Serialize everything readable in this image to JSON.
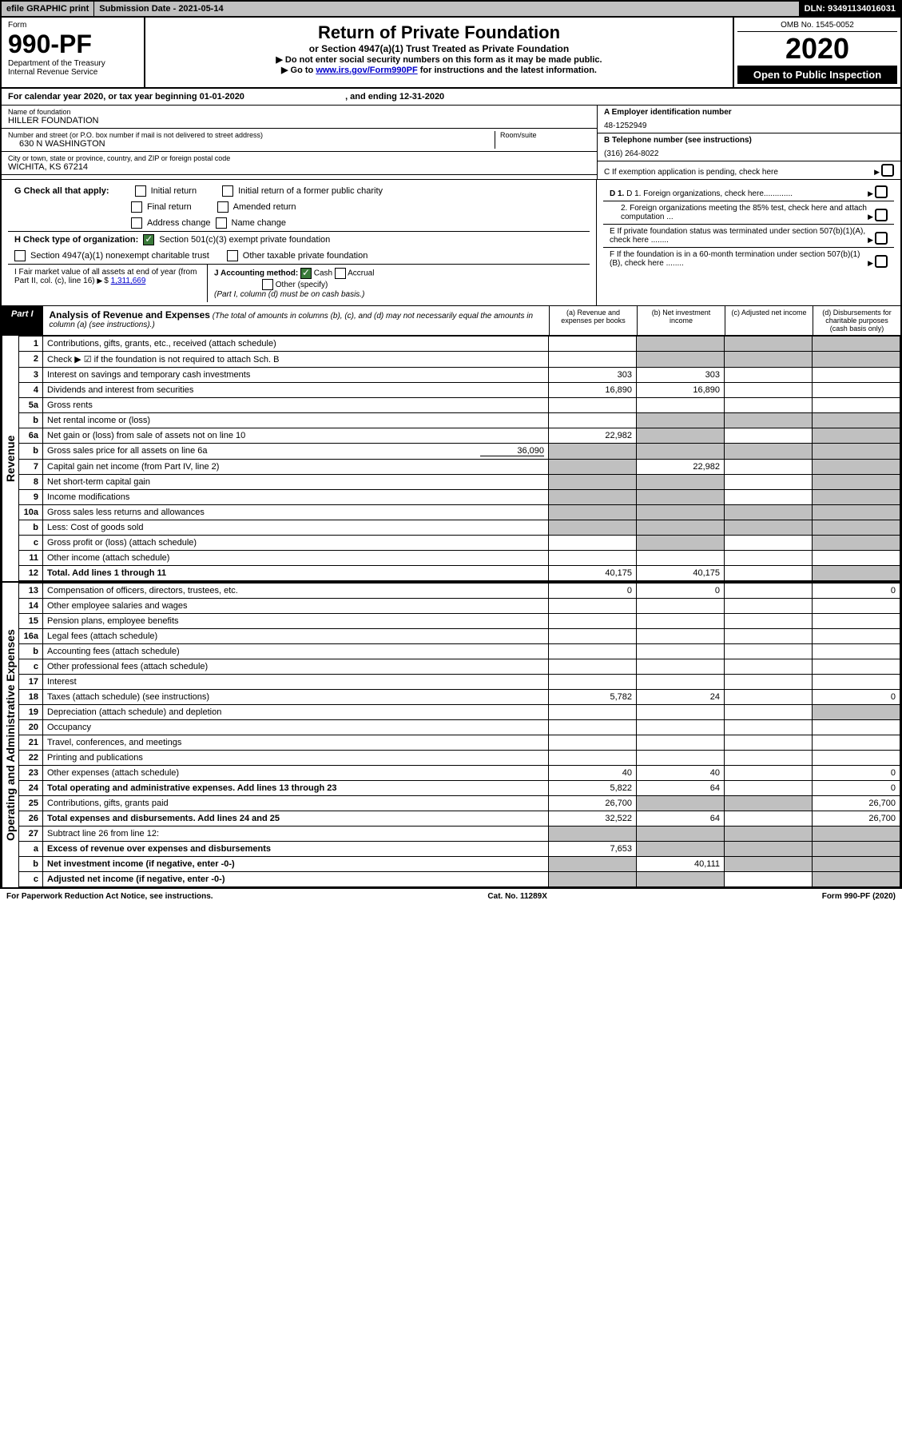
{
  "topbar": {
    "efile": "efile GRAPHIC print",
    "subdate": "Submission Date - 2021-05-14",
    "dln": "DLN: 93491134016031"
  },
  "header": {
    "form": "Form",
    "num": "990-PF",
    "dept": "Department of the Treasury\nInternal Revenue Service",
    "title": "Return of Private Foundation",
    "subtitle": "or Section 4947(a)(1) Trust Treated as Private Foundation",
    "note1": "▶ Do not enter social security numbers on this form as it may be made public.",
    "note2_pre": "▶ Go to ",
    "note2_link": "www.irs.gov/Form990PF",
    "note2_post": " for instructions and the latest information.",
    "omb": "OMB No. 1545-0052",
    "year": "2020",
    "open": "Open to Public Inspection"
  },
  "calyear": {
    "text1": "For calendar year 2020, or tax year beginning ",
    "begin": "01-01-2020",
    "text2": ", and ending ",
    "end": "12-31-2020"
  },
  "entity": {
    "name_lbl": "Name of foundation",
    "name": "HILLER FOUNDATION",
    "addr_lbl": "Number and street (or P.O. box number if mail is not delivered to street address)",
    "addr": "630 N WASHINGTON",
    "room_lbl": "Room/suite",
    "city_lbl": "City or town, state or province, country, and ZIP or foreign postal code",
    "city": "WICHITA, KS  67214",
    "a_lbl": "A Employer identification number",
    "ein": "48-1252949",
    "b_lbl": "B Telephone number (see instructions)",
    "phone": "(316) 264-8022",
    "c_lbl": "C  If exemption application is pending, check here",
    "d1": "D 1. Foreign organizations, check here.............",
    "d2": "2. Foreign organizations meeting the 85% test, check here and attach computation ...",
    "e_lbl": "E  If private foundation status was terminated under section 507(b)(1)(A), check here ........",
    "f_lbl": "F  If the foundation is in a 60-month termination under section 507(b)(1)(B), check here ........"
  },
  "checks": {
    "g_lbl": "G Check all that apply:",
    "g_initial": "Initial return",
    "g_initial_former": "Initial return of a former public charity",
    "g_final": "Final return",
    "g_amended": "Amended return",
    "g_addr": "Address change",
    "g_name": "Name change",
    "h_lbl": "H Check type of organization:",
    "h_501c3": "Section 501(c)(3) exempt private foundation",
    "h_4947": "Section 4947(a)(1) nonexempt charitable trust",
    "h_other": "Other taxable private foundation",
    "i_lbl": "I Fair market value of all assets at end of year (from Part II, col. (c), line 16)",
    "i_val": "1,311,669",
    "j_lbl": "J Accounting method:",
    "j_cash": "Cash",
    "j_accrual": "Accrual",
    "j_other": "Other (specify)",
    "j_note": "(Part I, column (d) must be on cash basis.)"
  },
  "part1": {
    "tab": "Part I",
    "title": "Analysis of Revenue and Expenses",
    "title_note": " (The total of amounts in columns (b), (c), and (d) may not necessarily equal the amounts in column (a) (see instructions).)",
    "col_a": "(a)   Revenue and expenses per books",
    "col_b": "(b)   Net investment income",
    "col_c": "(c)   Adjusted net income",
    "col_d": "(d)   Disbursements for charitable purposes (cash basis only)"
  },
  "sections": {
    "revenue": "Revenue",
    "expenses": "Operating and Administrative Expenses"
  },
  "rows": [
    {
      "n": "1",
      "d": "Contributions, gifts, grants, etc., received (attach schedule)",
      "a": "",
      "b": "",
      "c": "",
      "dd": "",
      "sb": true,
      "sc": true,
      "sd": true
    },
    {
      "n": "2",
      "d": "Check ▶ ☑ if the foundation is not required to attach Sch. B",
      "a": "",
      "b": "",
      "c": "",
      "dd": "",
      "sb": true,
      "sc": true,
      "sd": true,
      "bold_not": true
    },
    {
      "n": "3",
      "d": "Interest on savings and temporary cash investments",
      "a": "303",
      "b": "303",
      "c": "",
      "dd": ""
    },
    {
      "n": "4",
      "d": "Dividends and interest from securities",
      "a": "16,890",
      "b": "16,890",
      "c": "",
      "dd": ""
    },
    {
      "n": "5a",
      "d": "Gross rents",
      "a": "",
      "b": "",
      "c": "",
      "dd": ""
    },
    {
      "n": "b",
      "d": "Net rental income or (loss)",
      "a": "",
      "b": "",
      "c": "",
      "dd": "",
      "sb": true,
      "sc": true,
      "sd": true
    },
    {
      "n": "6a",
      "d": "Net gain or (loss) from sale of assets not on line 10",
      "a": "22,982",
      "b": "",
      "c": "",
      "dd": "",
      "sb": true,
      "sd": true
    },
    {
      "n": "b",
      "d": "Gross sales price for all assets on line 6a",
      "a": "",
      "b": "",
      "c": "",
      "dd": "",
      "inline_val": "36,090",
      "sa": true,
      "sb": true,
      "sc": true,
      "sd": true
    },
    {
      "n": "7",
      "d": "Capital gain net income (from Part IV, line 2)",
      "a": "",
      "b": "22,982",
      "c": "",
      "dd": "",
      "sa": true,
      "sd": true
    },
    {
      "n": "8",
      "d": "Net short-term capital gain",
      "a": "",
      "b": "",
      "c": "",
      "dd": "",
      "sa": true,
      "sb": true,
      "sd": true
    },
    {
      "n": "9",
      "d": "Income modifications",
      "a": "",
      "b": "",
      "c": "",
      "dd": "",
      "sa": true,
      "sb": true,
      "sd": true
    },
    {
      "n": "10a",
      "d": "Gross sales less returns and allowances",
      "a": "",
      "b": "",
      "c": "",
      "dd": "",
      "sa": true,
      "sb": true,
      "sc": true,
      "sd": true
    },
    {
      "n": "b",
      "d": "Less: Cost of goods sold",
      "a": "",
      "b": "",
      "c": "",
      "dd": "",
      "sa": true,
      "sb": true,
      "sc": true,
      "sd": true
    },
    {
      "n": "c",
      "d": "Gross profit or (loss) (attach schedule)",
      "a": "",
      "b": "",
      "c": "",
      "dd": "",
      "sb": true,
      "sd": true
    },
    {
      "n": "11",
      "d": "Other income (attach schedule)",
      "a": "",
      "b": "",
      "c": "",
      "dd": ""
    },
    {
      "n": "12",
      "d": "Total. Add lines 1 through 11",
      "a": "40,175",
      "b": "40,175",
      "c": "",
      "dd": "",
      "bold": true,
      "sd": true
    }
  ],
  "exp_rows": [
    {
      "n": "13",
      "d": "Compensation of officers, directors, trustees, etc.",
      "a": "0",
      "b": "0",
      "c": "",
      "dd": "0"
    },
    {
      "n": "14",
      "d": "Other employee salaries and wages",
      "a": "",
      "b": "",
      "c": "",
      "dd": ""
    },
    {
      "n": "15",
      "d": "Pension plans, employee benefits",
      "a": "",
      "b": "",
      "c": "",
      "dd": ""
    },
    {
      "n": "16a",
      "d": "Legal fees (attach schedule)",
      "a": "",
      "b": "",
      "c": "",
      "dd": ""
    },
    {
      "n": "b",
      "d": "Accounting fees (attach schedule)",
      "a": "",
      "b": "",
      "c": "",
      "dd": ""
    },
    {
      "n": "c",
      "d": "Other professional fees (attach schedule)",
      "a": "",
      "b": "",
      "c": "",
      "dd": ""
    },
    {
      "n": "17",
      "d": "Interest",
      "a": "",
      "b": "",
      "c": "",
      "dd": ""
    },
    {
      "n": "18",
      "d": "Taxes (attach schedule) (see instructions)",
      "a": "5,782",
      "b": "24",
      "c": "",
      "dd": "0"
    },
    {
      "n": "19",
      "d": "Depreciation (attach schedule) and depletion",
      "a": "",
      "b": "",
      "c": "",
      "dd": "",
      "sd": true
    },
    {
      "n": "20",
      "d": "Occupancy",
      "a": "",
      "b": "",
      "c": "",
      "dd": ""
    },
    {
      "n": "21",
      "d": "Travel, conferences, and meetings",
      "a": "",
      "b": "",
      "c": "",
      "dd": ""
    },
    {
      "n": "22",
      "d": "Printing and publications",
      "a": "",
      "b": "",
      "c": "",
      "dd": ""
    },
    {
      "n": "23",
      "d": "Other expenses (attach schedule)",
      "a": "40",
      "b": "40",
      "c": "",
      "dd": "0"
    },
    {
      "n": "24",
      "d": "Total operating and administrative expenses. Add lines 13 through 23",
      "a": "5,822",
      "b": "64",
      "c": "",
      "dd": "0",
      "bold": true
    },
    {
      "n": "25",
      "d": "Contributions, gifts, grants paid",
      "a": "26,700",
      "b": "",
      "c": "",
      "dd": "26,700",
      "sb": true,
      "sc": true
    },
    {
      "n": "26",
      "d": "Total expenses and disbursements. Add lines 24 and 25",
      "a": "32,522",
      "b": "64",
      "c": "",
      "dd": "26,700",
      "bold": true
    },
    {
      "n": "27",
      "d": "Subtract line 26 from line 12:",
      "a": "",
      "b": "",
      "c": "",
      "dd": "",
      "sa": true,
      "sb": true,
      "sc": true,
      "sd": true
    },
    {
      "n": "a",
      "d": "Excess of revenue over expenses and disbursements",
      "a": "7,653",
      "b": "",
      "c": "",
      "dd": "",
      "bold": true,
      "sb": true,
      "sc": true,
      "sd": true
    },
    {
      "n": "b",
      "d": "Net investment income (if negative, enter -0-)",
      "a": "",
      "b": "40,111",
      "c": "",
      "dd": "",
      "bold": true,
      "sa": true,
      "sc": true,
      "sd": true
    },
    {
      "n": "c",
      "d": "Adjusted net income (if negative, enter -0-)",
      "a": "",
      "b": "",
      "c": "",
      "dd": "",
      "bold": true,
      "sa": true,
      "sb": true,
      "sd": true
    }
  ],
  "footer": {
    "left": "For Paperwork Reduction Act Notice, see instructions.",
    "mid": "Cat. No. 11289X",
    "right": "Form 990-PF (2020)"
  }
}
